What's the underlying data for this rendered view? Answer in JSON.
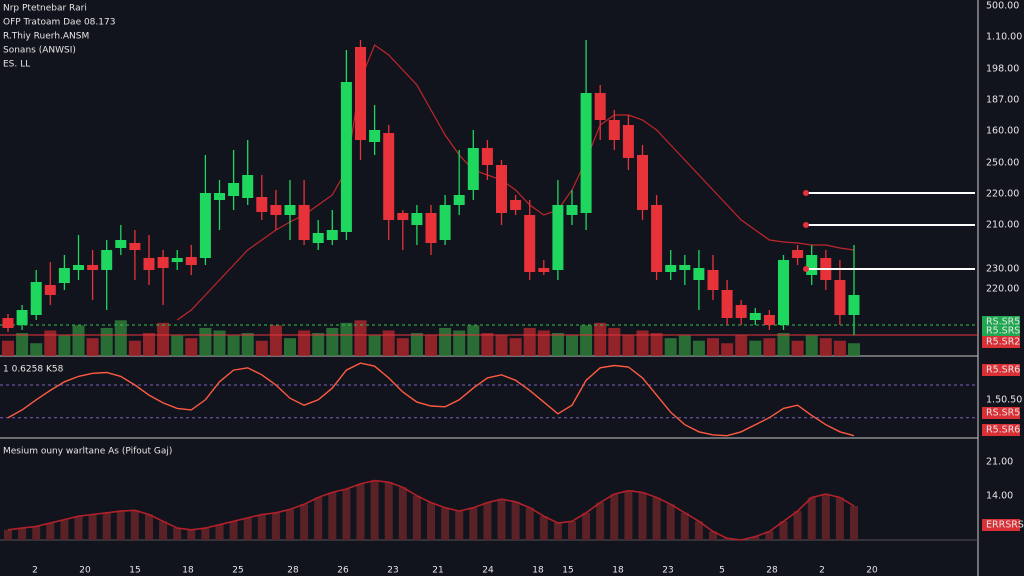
{
  "header": {
    "lines": [
      "Nrp Ptetnebar Rari",
      "OFP Tratoam Dae 08.173",
      "R.Thiy Ruerh.ANSM",
      "Sonans (ANWSI)",
      "ES. LL"
    ]
  },
  "right_labels": [
    {
      "text": "500.00",
      "color": null
    },
    {
      "text": "1.10.00",
      "color": null
    },
    {
      "text": "198.00",
      "color": null
    },
    {
      "text": "187.00",
      "color": null
    },
    {
      "text": "160.00",
      "color": null
    },
    {
      "text": "250.00",
      "color": null
    },
    {
      "text": "220.00",
      "color": null
    },
    {
      "text": "210.00",
      "color": null
    },
    {
      "text": "230.00",
      "color": null
    },
    {
      "text": "220.00",
      "color": null
    },
    {
      "text": "RS.SR5",
      "color": "#1fa84f"
    },
    {
      "text": "R5.SRS",
      "color": "#1fa84f"
    },
    {
      "text": "R5.SR2",
      "color": "#d93036"
    },
    {
      "text": "R5.SR6",
      "color": "#d93036"
    },
    {
      "text": "1.50.50",
      "color": null
    },
    {
      "text": "RS.SR5",
      "color": "#d93036"
    },
    {
      "text": "R5.SR6",
      "color": "#d93036"
    },
    {
      "text": "21.00",
      "color": null
    },
    {
      "text": "14.00",
      "color": null
    },
    {
      "text": "ERRSRS",
      "color": "#d93036"
    }
  ],
  "x_labels": [
    "2",
    "20",
    "15",
    "18",
    "25",
    "28",
    "26",
    "23",
    "21",
    "24",
    "18",
    "15",
    "18",
    "23",
    "5",
    "28",
    "2",
    "20"
  ],
  "chart_data": [
    {
      "type": "candlestick",
      "up_color": "#1fd65f",
      "down_color": "#e8323a",
      "ylim": [
        0,
        340
      ],
      "open": [
        22,
        15,
        25,
        55,
        57,
        70,
        75,
        70,
        92,
        97,
        82,
        83,
        78,
        83,
        82,
        140,
        144,
        142,
        143,
        135,
        125,
        135,
        97,
        100,
        108,
        293,
        198,
        207,
        127,
        115,
        127,
        100,
        135,
        150,
        192,
        175,
        140,
        125,
        72,
        70,
        125,
        127,
        247,
        220,
        215,
        185,
        135,
        68,
        70,
        60,
        70,
        50,
        35,
        20,
        25,
        15,
        90,
        65,
        82,
        60,
        25
      ],
      "high": [
        26,
        35,
        70,
        78,
        85,
        105,
        90,
        100,
        115,
        110,
        105,
        90,
        90,
        95,
        185,
        160,
        190,
        200,
        165,
        150,
        160,
        160,
        120,
        130,
        290,
        300,
        235,
        215,
        130,
        135,
        135,
        145,
        190,
        210,
        200,
        180,
        145,
        140,
        80,
        160,
        150,
        300,
        255,
        230,
        225,
        195,
        145,
        90,
        85,
        90,
        85,
        60,
        40,
        32,
        30,
        85,
        95,
        95,
        90,
        80,
        95
      ],
      "low": [
        8,
        10,
        20,
        35,
        50,
        60,
        40,
        30,
        85,
        60,
        55,
        35,
        70,
        65,
        75,
        110,
        130,
        135,
        120,
        110,
        100,
        95,
        90,
        95,
        100,
        180,
        185,
        100,
        90,
        95,
        85,
        95,
        125,
        140,
        160,
        115,
        125,
        60,
        65,
        60,
        115,
        110,
        200,
        190,
        170,
        120,
        60,
        60,
        55,
        30,
        40,
        15,
        15,
        15,
        10,
        10,
        75,
        55,
        50,
        15,
        5
      ],
      "close": [
        12,
        30,
        58,
        45,
        72,
        75,
        70,
        90,
        100,
        90,
        70,
        72,
        82,
        75,
        147,
        147,
        157,
        165,
        128,
        125,
        135,
        100,
        107,
        110,
        258,
        200,
        210,
        120,
        120,
        127,
        97,
        135,
        145,
        192,
        175,
        127,
        130,
        68,
        68,
        135,
        135,
        247,
        220,
        200,
        182,
        130,
        68,
        75,
        75,
        72,
        50,
        22,
        22,
        27,
        15,
        80,
        82,
        85,
        60,
        25,
        45
      ],
      "volume": [
        30,
        45,
        25,
        50,
        40,
        60,
        35,
        55,
        70,
        30,
        45,
        65,
        40,
        35,
        55,
        50,
        40,
        45,
        30,
        60,
        35,
        50,
        45,
        55,
        65,
        70,
        40,
        50,
        35,
        45,
        40,
        55,
        50,
        60,
        45,
        40,
        35,
        55,
        50,
        45,
        40,
        60,
        65,
        55,
        40,
        50,
        45,
        35,
        40,
        30,
        35,
        25,
        40,
        30,
        35,
        45,
        30,
        40,
        35,
        30,
        25
      ],
      "ma": [
        null,
        null,
        null,
        null,
        null,
        null,
        null,
        null,
        null,
        null,
        null,
        null,
        20,
        30,
        45,
        60,
        75,
        90,
        100,
        110,
        118,
        125,
        135,
        145,
        170,
        260,
        295,
        285,
        270,
        255,
        230,
        205,
        185,
        170,
        165,
        160,
        150,
        135,
        125,
        130,
        150,
        180,
        215,
        225,
        225,
        220,
        210,
        195,
        180,
        165,
        150,
        135,
        120,
        110,
        100,
        98,
        97,
        95,
        95,
        92,
        90
      ],
      "ma_color": "#c0262c",
      "levels": [
        147,
        115,
        71
      ],
      "level_color": "#ffffff",
      "dashed_levels": [
        {
          "value": 15,
          "color": "#2fbf4f"
        },
        {
          "value": 5,
          "color": "#e8323a"
        }
      ]
    },
    {
      "type": "line",
      "title": "1 0.6258 K58",
      "ylim": [
        0,
        100
      ],
      "color": "#ff5a40",
      "bands": [
        68,
        26
      ],
      "values": [
        26,
        36,
        49,
        61,
        72,
        79,
        83,
        84,
        79,
        68,
        55,
        45,
        38,
        36,
        49,
        72,
        87,
        90,
        81,
        68,
        51,
        42,
        49,
        64,
        87,
        96,
        92,
        77,
        59,
        46,
        41,
        40,
        49,
        64,
        77,
        81,
        74,
        61,
        46,
        31,
        42,
        74,
        90,
        93,
        91,
        77,
        55,
        33,
        17,
        8,
        4,
        3,
        8,
        17,
        26,
        38,
        42,
        29,
        17,
        8,
        3
      ]
    },
    {
      "type": "area",
      "title": "Mesium ouny warltane As (Pifout Gaj)",
      "ylim": [
        0,
        100
      ],
      "color": "#b3202a",
      "values": [
        12,
        14,
        16,
        20,
        24,
        28,
        30,
        32,
        34,
        35,
        30,
        22,
        14,
        12,
        14,
        18,
        22,
        26,
        30,
        32,
        36,
        42,
        50,
        56,
        60,
        66,
        70,
        68,
        62,
        52,
        44,
        38,
        34,
        38,
        44,
        48,
        45,
        38,
        28,
        20,
        22,
        32,
        44,
        54,
        58,
        56,
        50,
        42,
        32,
        22,
        10,
        2,
        0,
        4,
        10,
        22,
        34,
        50,
        54,
        50,
        40
      ]
    }
  ]
}
